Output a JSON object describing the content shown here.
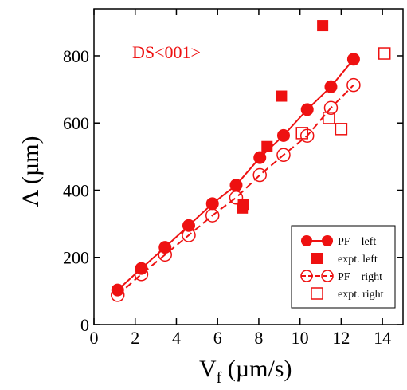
{
  "chart_data": {
    "type": "scatter",
    "title": "",
    "annotation": "DS<001>",
    "xlabel": "V",
    "xlabel_sub": "f",
    "xlabel_unit": " (µm/s)",
    "ylabel": "Λ (µm)",
    "xlim": [
      0,
      15
    ],
    "ylim": [
      0,
      940
    ],
    "xticks": [
      0,
      2,
      4,
      6,
      8,
      10,
      12,
      14
    ],
    "yticks": [
      0,
      200,
      400,
      600,
      800
    ],
    "grid": false,
    "legend_position": "bottom-right",
    "colors": {
      "series": "#ee1111",
      "axis": "#000000"
    },
    "series": [
      {
        "name": "PF    left",
        "marker": "filled-circle",
        "line": "solid",
        "x": [
          1.15,
          2.3,
          3.45,
          4.6,
          5.75,
          6.9,
          8.05,
          9.2,
          10.35,
          11.5,
          12.6
        ],
        "y": [
          103,
          167,
          230,
          295,
          360,
          415,
          497,
          563,
          640,
          708,
          790
        ]
      },
      {
        "name": "expt. left",
        "marker": "filled-square",
        "line": "none",
        "x": [
          7.2,
          7.25,
          8.4,
          9.1,
          11.1
        ],
        "y": [
          347,
          358,
          530,
          680,
          890
        ]
      },
      {
        "name": "PF    right",
        "marker": "open-circle",
        "line": "dashed",
        "x": [
          1.15,
          2.3,
          3.45,
          4.6,
          5.75,
          6.9,
          8.05,
          9.2,
          10.35,
          11.5,
          12.6
        ],
        "y": [
          88,
          150,
          208,
          266,
          325,
          378,
          445,
          505,
          562,
          645,
          713
        ]
      },
      {
        "name": "expt. right",
        "marker": "open-square",
        "line": "none",
        "x": [
          10.1,
          11.4,
          12.0,
          14.1
        ],
        "y": [
          570,
          615,
          582,
          807
        ]
      }
    ]
  }
}
